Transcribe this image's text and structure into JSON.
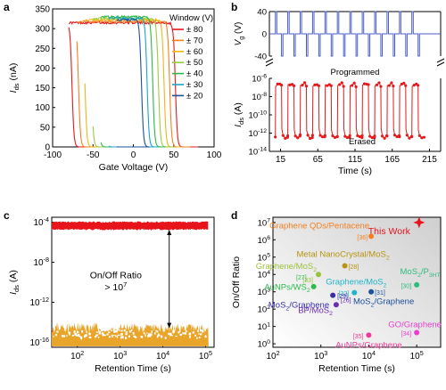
{
  "chart_data": [
    {
      "panel_label": "a",
      "type": "line",
      "xlabel": "Gate Voltage (V)",
      "ylabel": "I_ds (nA)",
      "xlim": [
        -100,
        100
      ],
      "ylim": [
        0,
        350
      ],
      "x_ticks": [
        "-100",
        "-50",
        "0",
        "50",
        "100"
      ],
      "y_ticks": [
        "0",
        "50",
        "100",
        "150",
        "200",
        "250",
        "300",
        "350"
      ],
      "legend_title": "Window (V)",
      "legend_position": "right",
      "series": [
        {
          "name": "± 80",
          "color": "#e41a1c",
          "sweep_min": -80,
          "sweep_max": 80,
          "v_up": 52,
          "v_down": -76,
          "i_max": 315
        },
        {
          "name": "± 70",
          "color": "#f57f20",
          "sweep_min": -70,
          "sweep_max": 70,
          "v_up": 45,
          "v_down": -68,
          "i_max": 318
        },
        {
          "name": "± 60",
          "color": "#f2b517",
          "sweep_min": -60,
          "sweep_max": 60,
          "v_up": 38,
          "v_down": -60,
          "i_max": 322
        },
        {
          "name": "± 50",
          "color": "#9ccc3b",
          "sweep_min": -50,
          "sweep_max": 50,
          "v_up": 31,
          "v_down": -52,
          "i_max": 326
        },
        {
          "name": "± 40",
          "color": "#2db84a",
          "sweep_min": -40,
          "sweep_max": 40,
          "v_up": 24,
          "v_down": -44,
          "i_max": 330
        },
        {
          "name": "± 30",
          "color": "#1aa6c6",
          "sweep_min": -30,
          "sweep_max": 30,
          "v_up": 17,
          "v_down": -36,
          "i_max": 326
        },
        {
          "name": "± 20",
          "color": "#1d4f9a",
          "sweep_min": -20,
          "sweep_max": 20,
          "v_up": 10,
          "v_down": -28,
          "i_max": 322
        }
      ]
    },
    {
      "panel_label": "b",
      "type": "line",
      "xlabel": "Time (s)",
      "x_ticks": [
        "15",
        "65",
        "115",
        "165",
        "215"
      ],
      "x_tick_values": [
        15,
        65,
        115,
        165,
        215
      ],
      "xlim": [
        0,
        230
      ],
      "top": {
        "ylabel": "V_g (V)",
        "ylim": [
          -40,
          40
        ],
        "y_ticks": [
          "-40",
          "0",
          "40"
        ],
        "color": "#4a5ec8",
        "pulse_amplitude": 40
      },
      "bottom": {
        "ylabel": "I_ds (A)",
        "ylim_log": [
          -14,
          -6
        ],
        "y_ticks": [
          "10^-6",
          "10^-8",
          "10^-10",
          "10^-12",
          "10^-14"
        ],
        "color": "#e41a1c",
        "annotations": [
          "Programmed",
          "Erased"
        ],
        "cycles": 12,
        "high_log": -6.7,
        "low_log": -12.6
      }
    },
    {
      "panel_label": "c",
      "type": "area",
      "xlabel": "Retention Time (s)",
      "ylabel": "I_ds (A)",
      "xlim_log": [
        1.4,
        5.2
      ],
      "ylim_log": [
        -16.5,
        -3.5
      ],
      "x_ticks": [
        "10^2",
        "10^3",
        "10^4",
        "10^5"
      ],
      "y_ticks": [
        "10^-4",
        "10^-8",
        "10^-12",
        "10^-16"
      ],
      "annotation": [
        "On/Off Ratio",
        "> 10^7"
      ],
      "on_state": {
        "color": "#e8141c",
        "log_value": -4.3
      },
      "off_state": {
        "color": "#e9a42a",
        "log_value": -15.3
      }
    },
    {
      "panel_label": "d",
      "type": "scatter",
      "xlabel": "Retention Time (s)",
      "ylabel": "On/Off Ratio",
      "xlim_log": [
        2,
        5.5
      ],
      "ylim_log": [
        -0.2,
        7.3
      ],
      "x_ticks": [
        "10^2",
        "10^3",
        "10^4",
        "10^5"
      ],
      "y_ticks": [
        "10^0",
        "10^1",
        "10^2",
        "10^3",
        "10^4",
        "10^5",
        "10^6",
        "10^7"
      ],
      "points": [
        {
          "label": "This Work",
          "ref": "",
          "color": "#e8141c",
          "x_log": 5.05,
          "y_log": 7.0
        },
        {
          "label": "Graphene QDs/Pentacene",
          "ref": "[36]",
          "color": "#f57f20",
          "x_log": 4.05,
          "y_log": 6.2
        },
        {
          "label": "Metal NanoCrystal/MoS_2",
          "ref": "[28]",
          "color": "#b8930f",
          "x_log": 3.5,
          "y_log": 4.5
        },
        {
          "label": "Graphene/MoS_2",
          "ref": "[33]",
          "color": "#9cc23b",
          "x_log": 2.95,
          "y_log": 4.0
        },
        {
          "label": "AuNPs/WS_2",
          "ref": "[27]",
          "color": "#2dbb4e",
          "x_log": 2.85,
          "y_log": 3.3
        },
        {
          "label": "Graphene/MoS_2",
          "ref": "[32]",
          "color": "#1fb4c8",
          "x_log": 3.7,
          "y_log": 2.95
        },
        {
          "label": "MoS_2/Graphene",
          "ref": "[31]",
          "color": "#1d4f9a",
          "x_log": 4.05,
          "y_log": 3.0
        },
        {
          "label": "MoS_2/P_3HT",
          "ref": "[30]",
          "color": "#2dbb7e",
          "x_log": 5.0,
          "y_log": 3.4
        },
        {
          "label": "MoS_2/Graphene",
          "ref": "[29]",
          "color": "#3a2fa8",
          "x_log": 3.25,
          "y_log": 2.8
        },
        {
          "label": "BP/MoS_2",
          "ref": "[26]",
          "color": "#6a2fb0",
          "x_log": 3.32,
          "y_log": 2.25
        },
        {
          "label": "GO/Graphene",
          "ref": "[34]",
          "color": "#e83fd0",
          "x_log": 5.0,
          "y_log": 0.65
        },
        {
          "label": "AuNPs/Graphene",
          "ref": "[35]",
          "color": "#ec3b98",
          "x_log": 4.0,
          "y_log": 0.5
        }
      ]
    }
  ]
}
